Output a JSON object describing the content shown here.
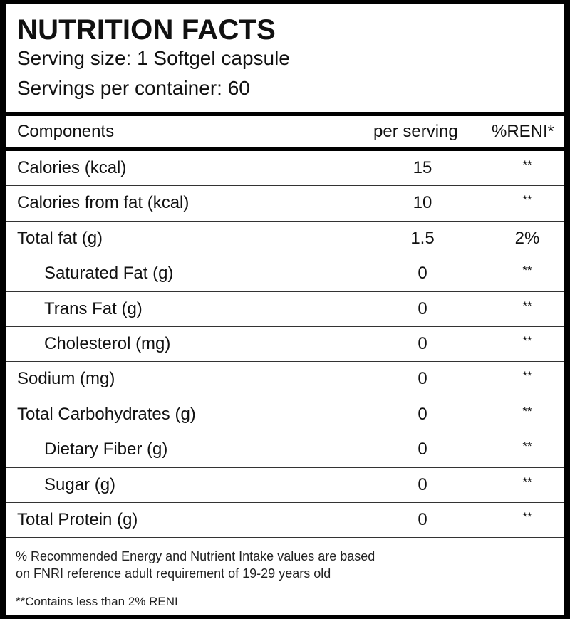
{
  "header": {
    "title": "NUTRITION FACTS",
    "serving_size": "Serving size: 1 Softgel capsule",
    "servings_per_container": "Servings per container: 60"
  },
  "table": {
    "columns": [
      "Components",
      "per serving",
      "%RENI*"
    ],
    "rows": [
      {
        "cells": [
          "Calories (kcal)",
          "15",
          "**"
        ]
      },
      {
        "cells": [
          "Calories from fat (kcal)",
          "10",
          "**"
        ]
      },
      {
        "cells": [
          "Total fat (g)",
          "1.5",
          "2%"
        ],
        "subrows": [
          {
            "cells": [
              "Saturated Fat (g)",
              "0",
              "**"
            ]
          },
          {
            "cells": [
              "Trans Fat (g)",
              "0",
              "**"
            ]
          },
          {
            "cells": [
              "Cholesterol (mg)",
              "0",
              "**"
            ]
          }
        ]
      },
      {
        "cells": [
          "Sodium (mg)",
          "0",
          "**"
        ]
      },
      {
        "cells": [
          "Total Carbohydrates (g)",
          "0",
          "**"
        ],
        "subrows": [
          {
            "cells": [
              "Dietary Fiber (g)",
              "0",
              "**"
            ]
          },
          {
            "cells": [
              "Sugar  (g)",
              "0",
              "**"
            ]
          }
        ]
      },
      {
        "cells": [
          "Total Protein (g)",
          "0",
          "**"
        ]
      }
    ]
  },
  "footer": {
    "note_lines": [
      "% Recommended Energy and Nutrient Intake values are based",
      "on FNRI reference adult requirement of 19-29 years old"
    ],
    "asterisk_note": "**Contains less than 2% RENI"
  }
}
